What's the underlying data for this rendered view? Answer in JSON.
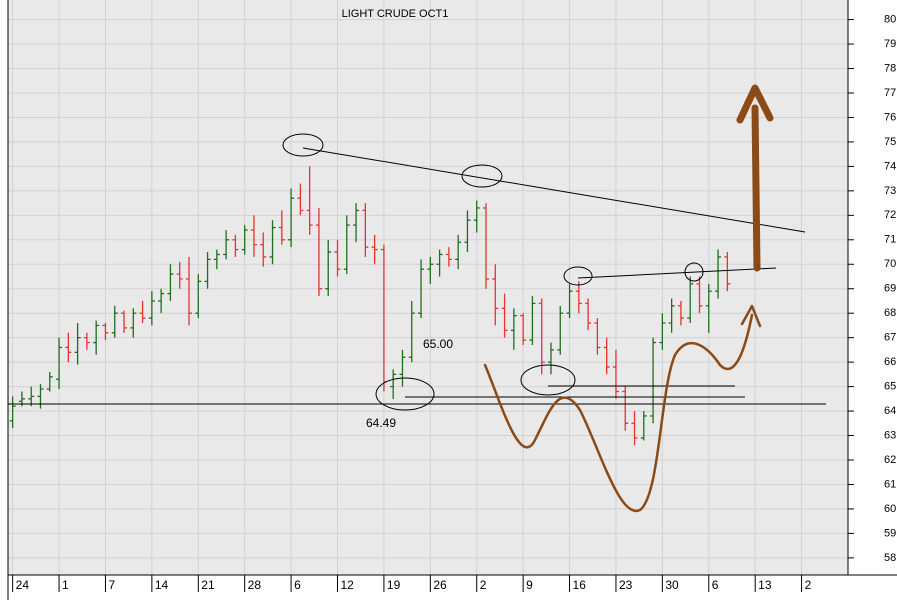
{
  "chart_data": {
    "type": "ohlc",
    "title": "LIGHT CRUDE OCT1",
    "annotations": [
      "65.00",
      "64.49"
    ],
    "up_color": "#1f6e1f",
    "down_color": "#e8332f",
    "grid": true,
    "xlim": [
      -0.5,
      90
    ],
    "ylim": [
      57.3,
      80.8
    ],
    "yticks": [
      58,
      59,
      60,
      61,
      62,
      63,
      64,
      65,
      66,
      67,
      68,
      69,
      70,
      71,
      72,
      73,
      74,
      75,
      76,
      77,
      78,
      79,
      80
    ],
    "xticks": [
      {
        "value": 0,
        "label": "24"
      },
      {
        "value": 5,
        "label": "1"
      },
      {
        "value": 10,
        "label": "7"
      },
      {
        "value": 15,
        "label": "14"
      },
      {
        "value": 20,
        "label": "21"
      },
      {
        "value": 25,
        "label": "28"
      },
      {
        "value": 30,
        "label": "6"
      },
      {
        "value": 35,
        "label": "12"
      },
      {
        "value": 40,
        "label": "19"
      },
      {
        "value": 45,
        "label": "26"
      },
      {
        "value": 50,
        "label": "2"
      },
      {
        "value": 55,
        "label": "9"
      },
      {
        "value": 60,
        "label": "16"
      },
      {
        "value": 65,
        "label": "23"
      },
      {
        "value": 70,
        "label": "30"
      },
      {
        "value": 75,
        "label": "6"
      },
      {
        "value": 80,
        "label": "13"
      },
      {
        "value": 85,
        "label": "2"
      }
    ],
    "open": [
      63.6,
      64.4,
      64.5,
      64.6,
      64.9,
      65.3,
      66.6,
      66.4,
      67.0,
      66.8,
      67.5,
      67.2,
      68.0,
      67.4,
      68.0,
      67.8,
      68.5,
      68.8,
      69.6,
      69.4,
      68.0,
      69.3,
      70.2,
      70.4,
      71.0,
      70.6,
      71.4,
      70.8,
      70.3,
      71.5,
      71.0,
      72.7,
      72.2,
      71.6,
      69.0,
      70.5,
      69.8,
      71.6,
      72.2,
      70.7,
      70.6,
      65.0,
      65.5,
      66.2,
      68.0,
      69.8,
      70.0,
      70.4,
      70.2,
      70.9,
      71.8,
      72.3,
      69.4,
      68.2,
      67.3,
      67.9,
      66.9,
      68.4,
      66.0,
      66.5,
      68.0,
      68.9,
      68.4,
      67.6,
      66.6,
      65.8,
      64.8,
      63.5,
      62.9,
      63.8,
      66.8,
      67.6,
      68.3,
      67.8,
      69.2,
      68.3,
      68.9,
      70.3
    ],
    "high": [
      64.6,
      64.8,
      65.0,
      65.1,
      65.6,
      67.0,
      67.2,
      67.6,
      67.2,
      67.7,
      67.6,
      68.3,
      68.1,
      68.2,
      68.5,
      68.9,
      69.0,
      70.0,
      70.1,
      70.3,
      69.6,
      70.5,
      70.6,
      71.4,
      71.2,
      71.6,
      72.0,
      71.3,
      71.8,
      72.2,
      73.1,
      73.3,
      74.0,
      72.3,
      71.0,
      71.0,
      72.0,
      72.5,
      72.5,
      71.2,
      70.8,
      65.7,
      66.5,
      68.5,
      70.2,
      70.3,
      70.6,
      70.7,
      71.2,
      72.2,
      72.6,
      72.5,
      70.0,
      68.8,
      68.2,
      68.0,
      68.7,
      68.6,
      66.8,
      68.3,
      69.2,
      69.3,
      68.6,
      67.8,
      67.0,
      66.5,
      65.0,
      64.0,
      64.0,
      67.0,
      68.0,
      68.6,
      68.5,
      69.5,
      69.5,
      69.2,
      70.6,
      70.5
    ],
    "low": [
      63.3,
      64.2,
      64.2,
      64.1,
      64.8,
      64.9,
      66.0,
      65.9,
      66.5,
      66.3,
      66.9,
      67.0,
      67.2,
      67.0,
      67.6,
      67.5,
      68.0,
      68.5,
      69.0,
      67.5,
      67.8,
      69.0,
      69.8,
      70.2,
      70.3,
      70.4,
      70.3,
      69.9,
      70.0,
      70.8,
      70.7,
      72.0,
      71.2,
      68.7,
      68.7,
      69.5,
      69.6,
      70.9,
      70.3,
      70.0,
      64.8,
      64.49,
      65.0,
      66.0,
      67.8,
      69.2,
      69.5,
      69.9,
      69.8,
      70.5,
      71.3,
      69.0,
      67.5,
      67.0,
      66.5,
      66.7,
      66.7,
      65.5,
      65.5,
      66.3,
      67.8,
      68.0,
      67.3,
      66.3,
      65.5,
      64.5,
      63.2,
      62.6,
      62.8,
      63.5,
      66.5,
      67.2,
      67.5,
      67.6,
      68.0,
      67.2,
      68.6,
      68.9
    ],
    "close": [
      64.2,
      64.5,
      64.6,
      64.9,
      65.4,
      66.6,
      66.4,
      67.0,
      66.8,
      67.5,
      67.2,
      68.0,
      67.4,
      68.0,
      67.8,
      68.5,
      68.8,
      69.6,
      69.4,
      68.0,
      69.3,
      70.2,
      70.4,
      71.0,
      70.6,
      71.4,
      70.8,
      70.3,
      71.5,
      71.0,
      72.7,
      72.2,
      71.6,
      69.0,
      70.5,
      69.8,
      71.6,
      72.2,
      70.7,
      70.6,
      65.2,
      65.5,
      66.2,
      68.0,
      69.8,
      70.0,
      70.4,
      70.2,
      70.9,
      71.8,
      72.3,
      69.4,
      68.2,
      67.3,
      67.9,
      66.9,
      68.4,
      66.0,
      66.5,
      68.0,
      68.9,
      68.4,
      67.6,
      66.6,
      65.8,
      64.8,
      63.5,
      62.9,
      63.8,
      66.8,
      67.6,
      68.3,
      67.8,
      69.2,
      68.3,
      68.9,
      70.3,
      69.2
    ]
  }
}
